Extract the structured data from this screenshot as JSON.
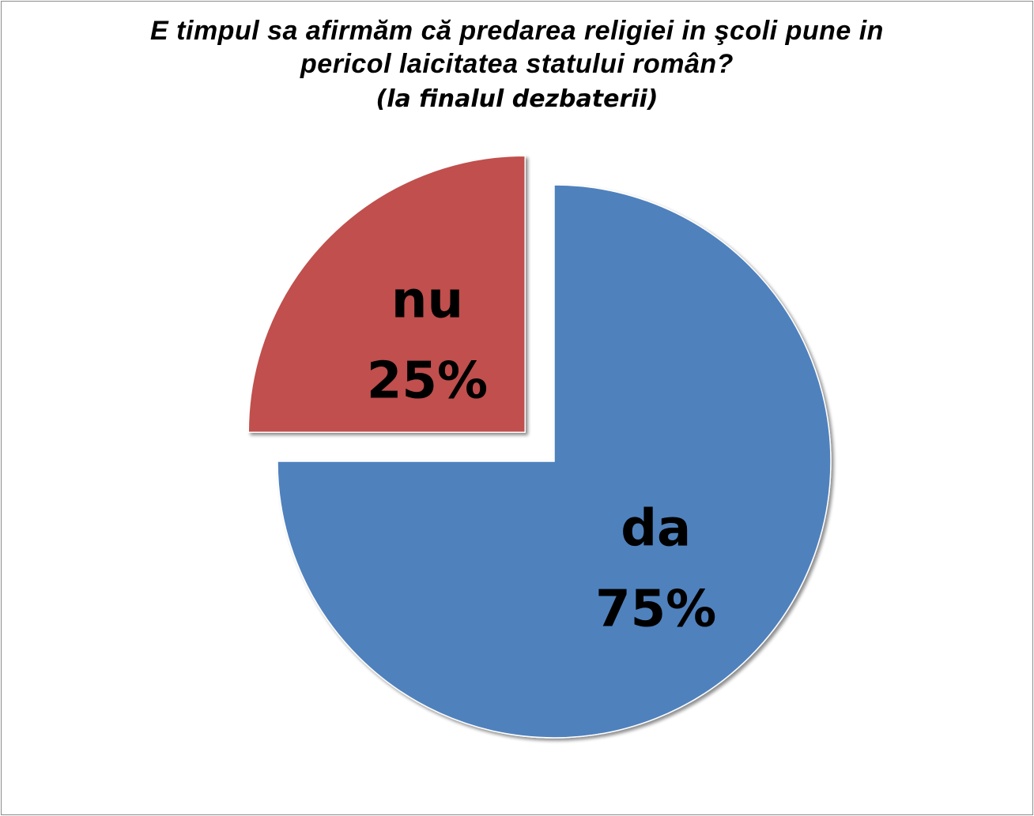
{
  "chart_data": {
    "type": "pie",
    "title_line1": "E timpul sa afirmăm că predarea religiei in şcoli pune in",
    "title_line2": "pericol laicitatea statului român?",
    "subtitle": "(la finalul dezbaterii)",
    "slices": [
      {
        "label": "da",
        "value": 75,
        "value_text": "75%",
        "color": "#4f81bd",
        "exploded": false
      },
      {
        "label": "nu",
        "value": 25,
        "value_text": "25%",
        "color": "#c0504d",
        "exploded": true
      }
    ],
    "legend": "none",
    "data_labels": "inside"
  }
}
